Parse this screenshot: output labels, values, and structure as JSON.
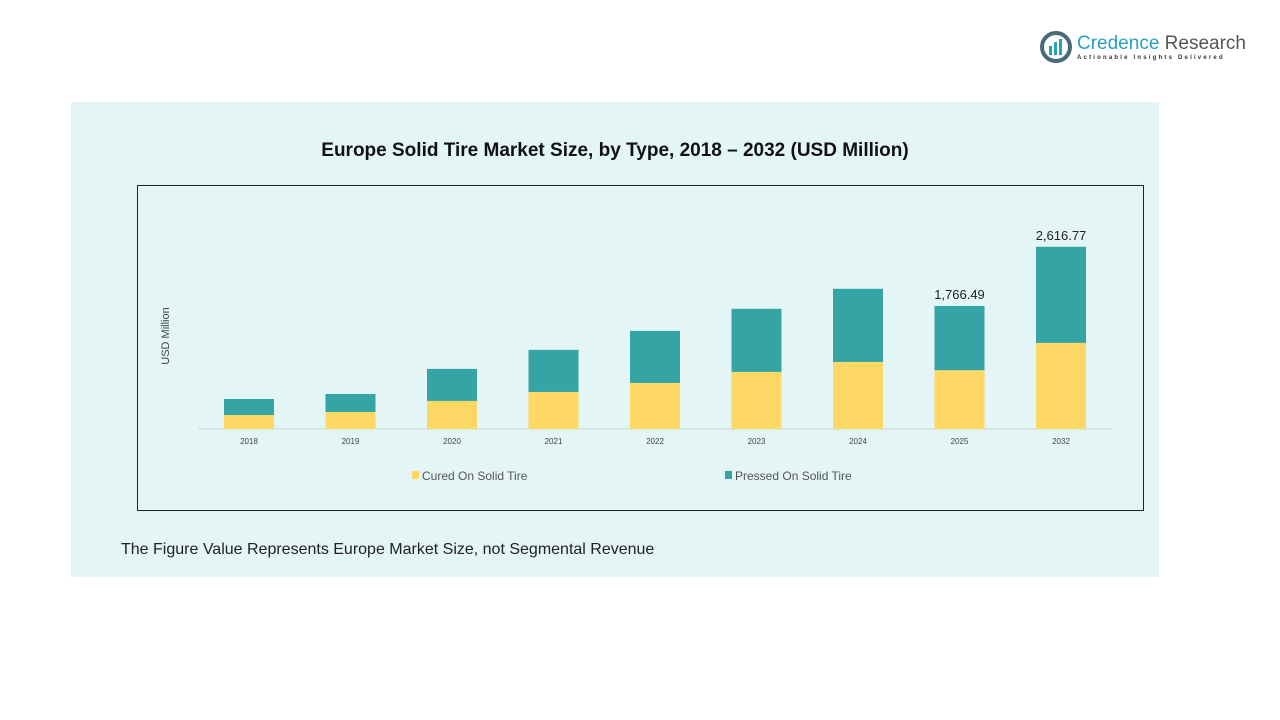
{
  "logo": {
    "name_part1": "Credence",
    "name_part2": "Research",
    "tagline": "Actionable Insights Delivered"
  },
  "footnote": "The Figure Value Represents Europe Market Size, not Segmental Revenue",
  "chart_data": {
    "type": "bar",
    "stacked": true,
    "title": "Europe Solid Tire Market Size, by Type, 2018 – 2032 (USD Million)",
    "xlabel": "",
    "ylabel": "USD Million",
    "ylim": [
      0,
      2800
    ],
    "grid": false,
    "legend_position": "bottom",
    "categories": [
      "2018",
      "2019",
      "2020",
      "2021",
      "2022",
      "2023",
      "2024",
      "2025",
      "2032"
    ],
    "series": [
      {
        "name": "Cured On Solid Tire",
        "color": "#fdd865",
        "values": [
          201,
          244,
          403,
          532,
          661,
          820,
          963,
          844.8,
          1236.5
        ]
      },
      {
        "name": "Pressed On Solid Tire",
        "color": "#34a5a4",
        "values": [
          230,
          259,
          460,
          604,
          748,
          906,
          1050,
          921.69,
          1380.27
        ]
      }
    ],
    "data_labels": {
      "2025": "1,766.49",
      "2032": "2,616.77"
    }
  }
}
